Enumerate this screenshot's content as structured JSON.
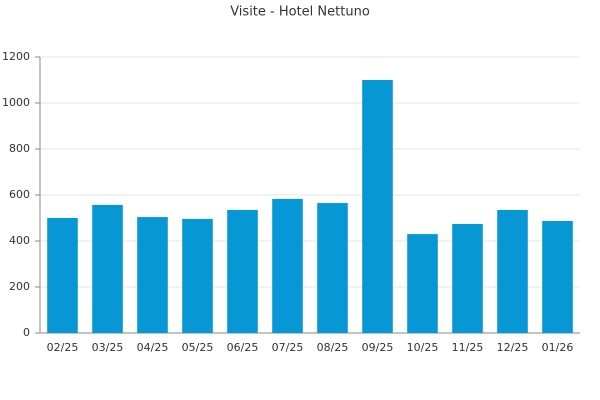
{
  "chart_data": {
    "type": "bar",
    "title": "Visite - Hotel Nettuno",
    "categories": [
      "02/25",
      "03/25",
      "04/25",
      "05/25",
      "06/25",
      "07/25",
      "08/25",
      "09/25",
      "10/25",
      "11/25",
      "12/25",
      "01/26"
    ],
    "values": [
      500,
      557,
      504,
      496,
      535,
      583,
      565,
      1100,
      430,
      474,
      535,
      487
    ],
    "color": "#0797d4",
    "ylim": [
      0,
      1200
    ],
    "yticks": [
      0,
      200,
      400,
      600,
      800,
      1000,
      1200
    ],
    "grid": true
  }
}
